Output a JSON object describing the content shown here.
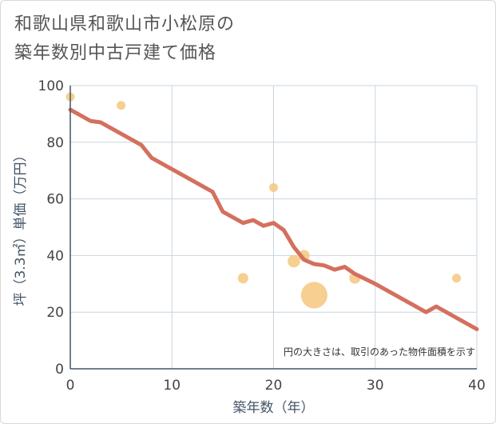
{
  "title_lines": [
    "和歌山県和歌山市小松原の",
    "築年数別中古戸建て価格"
  ],
  "chart_data": {
    "type": "scatter+line",
    "title": "和歌山県和歌山市小松原の築年数別中古戸建て価格",
    "xlabel": "築年数（年）",
    "ylabel": "坪（3.3㎡）単価（万円）",
    "xlim": [
      0,
      40
    ],
    "ylim": [
      0,
      100
    ],
    "xticks": [
      0,
      10,
      20,
      30,
      40
    ],
    "yticks": [
      0,
      20,
      40,
      60,
      80,
      100
    ],
    "grid": true,
    "note": "円の大きさは、取引のあった物件面積を示す",
    "colors": {
      "line": "#d4705e",
      "bubble": "#f5c77e",
      "grid": "#c9d5e0",
      "axis": "#445566"
    },
    "scatter": [
      {
        "x": 0,
        "y": 96,
        "size": 1
      },
      {
        "x": 5,
        "y": 93,
        "size": 1
      },
      {
        "x": 17,
        "y": 32,
        "size": 1.4
      },
      {
        "x": 20,
        "y": 64,
        "size": 1
      },
      {
        "x": 22,
        "y": 38,
        "size": 2
      },
      {
        "x": 23,
        "y": 40,
        "size": 1.6
      },
      {
        "x": 24,
        "y": 26,
        "size": 4.4
      },
      {
        "x": 28,
        "y": 32,
        "size": 1.6
      },
      {
        "x": 38,
        "y": 32,
        "size": 1
      }
    ],
    "line": {
      "x": [
        0,
        2,
        3,
        5,
        7,
        8,
        10,
        12,
        14,
        15,
        17,
        18,
        19,
        20,
        21,
        22,
        23,
        24,
        25,
        26,
        27,
        28,
        30,
        32,
        34,
        35,
        36,
        38,
        40
      ],
      "y": [
        91.5,
        87.5,
        87,
        83,
        79,
        74.5,
        70.5,
        66.5,
        62.5,
        55.5,
        51.5,
        52.5,
        50.5,
        51.5,
        49,
        43,
        38.5,
        37,
        36.5,
        35,
        36,
        33.5,
        30,
        26,
        22,
        20,
        22,
        18,
        14
      ]
    }
  }
}
